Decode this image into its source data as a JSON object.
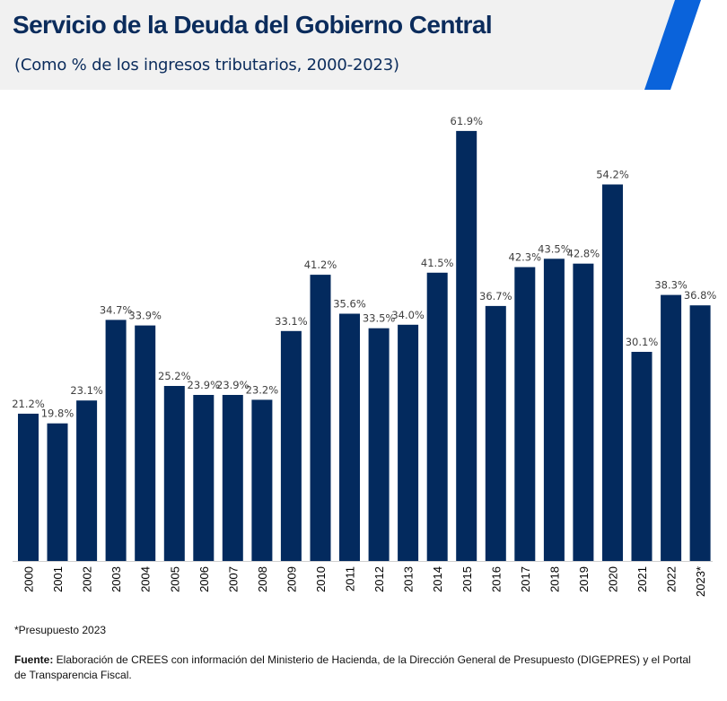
{
  "header": {
    "title": "Servicio de la Deuda del Gobierno Central",
    "subtitle": "(Como % de los ingresos tributarios, 2000-2023)",
    "background_color": "#f1f1f1",
    "title_color": "#0b2c5c",
    "accent_color": "#0a63db"
  },
  "chart_data": {
    "type": "bar",
    "title": "Servicio de la Deuda del Gobierno Central",
    "subtitle": "(Como % de los ingresos tributarios, 2000-2023)",
    "xlabel": "",
    "ylabel": "",
    "categories": [
      "2000",
      "2001",
      "2002",
      "2003",
      "2004",
      "2005",
      "2006",
      "2007",
      "2008",
      "2009",
      "2010",
      "2011",
      "2012",
      "2013",
      "2014",
      "2015",
      "2016",
      "2017",
      "2018",
      "2019",
      "2020",
      "2021",
      "2022",
      "2023*"
    ],
    "values": [
      21.2,
      19.8,
      23.1,
      34.7,
      33.9,
      25.2,
      23.9,
      23.9,
      23.2,
      33.1,
      41.2,
      35.6,
      33.5,
      34.0,
      41.5,
      61.9,
      36.7,
      42.3,
      43.5,
      42.8,
      54.2,
      30.1,
      38.3,
      36.8
    ],
    "data_labels": [
      "21.2%",
      "19.8%",
      "23.1%",
      "34.7%",
      "33.9%",
      "25.2%",
      "23.9%",
      "23.9%",
      "23.2%",
      "33.1%",
      "41.2%",
      "35.6%",
      "33.5%",
      "34.0%",
      "41.5%",
      "61.9%",
      "36.7%",
      "42.3%",
      "43.5%",
      "42.8%",
      "54.2%",
      "30.1%",
      "38.3%",
      "36.8%"
    ],
    "ylim": [
      0,
      65
    ],
    "grid": false,
    "legend": "none",
    "bar_color": "#032a5e"
  },
  "footer": {
    "footnote": "*Presupuesto 2023",
    "source_label": "Fuente:",
    "source_text": " Elaboración de CREES con información del Ministerio de Hacienda, de la Dirección General de Presupuesto (DIGEPRES) y el Portal de Transparencia Fiscal."
  }
}
